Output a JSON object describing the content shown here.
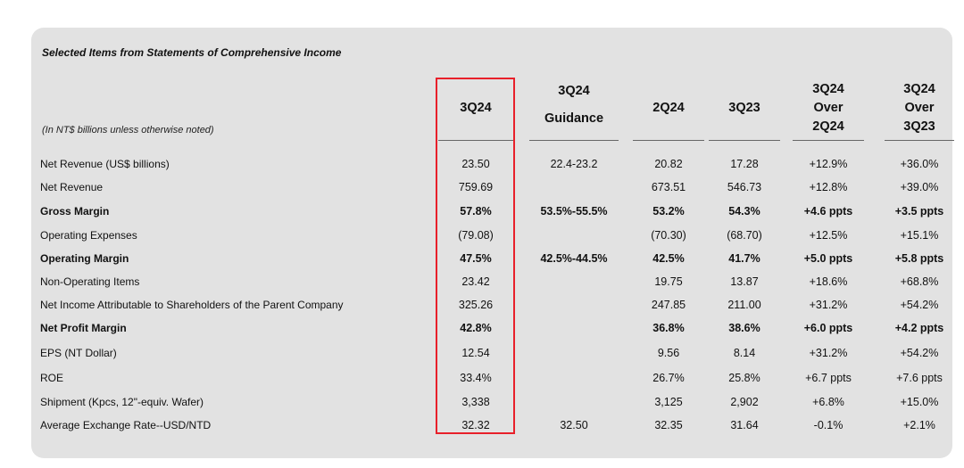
{
  "table": {
    "title": "Selected Items from Statements of Comprehensive Income",
    "units_note": "(In NT$ billions unless otherwise noted)",
    "columns": [
      {
        "lines": [
          "3Q24"
        ]
      },
      {
        "lines": [
          "3Q24",
          "Guidance"
        ]
      },
      {
        "lines": [
          "2Q24"
        ]
      },
      {
        "lines": [
          "3Q23"
        ]
      },
      {
        "lines": [
          "3Q24",
          "Over",
          "2Q24"
        ]
      },
      {
        "lines": [
          "3Q24",
          "Over",
          "3Q23"
        ]
      }
    ],
    "highlight_color": "#e8202a",
    "rows": [
      {
        "label": "Net Revenue (US$ billions)",
        "bold": false,
        "values": [
          "23.50",
          "22.4-23.2",
          "20.82",
          "17.28",
          "+12.9%",
          "+36.0%"
        ]
      },
      {
        "label": "Net Revenue",
        "bold": false,
        "values": [
          "759.69",
          "",
          "673.51",
          "546.73",
          "+12.8%",
          "+39.0%"
        ]
      },
      {
        "label": "Gross Margin",
        "bold": true,
        "values": [
          "57.8%",
          "53.5%-55.5%",
          "53.2%",
          "54.3%",
          "+4.6 ppts",
          "+3.5 ppts"
        ]
      },
      {
        "label": "Operating Expenses",
        "bold": false,
        "values": [
          "(79.08)",
          "",
          "(70.30)",
          "(68.70)",
          "+12.5%",
          "+15.1%"
        ]
      },
      {
        "label": "Operating Margin",
        "bold": true,
        "values": [
          "47.5%",
          "42.5%-44.5%",
          "42.5%",
          "41.7%",
          "+5.0 ppts",
          "+5.8 ppts"
        ]
      },
      {
        "label": "Non-Operating Items",
        "bold": false,
        "values": [
          "23.42",
          "",
          "19.75",
          "13.87",
          "+18.6%",
          "+68.8%"
        ]
      },
      {
        "label": "Net Income Attributable to Shareholders of the Parent Company",
        "bold": false,
        "values": [
          "325.26",
          "",
          "247.85",
          "211.00",
          "+31.2%",
          "+54.2%"
        ]
      },
      {
        "label": "Net Profit Margin",
        "bold": true,
        "values": [
          "42.8%",
          "",
          "36.8%",
          "38.6%",
          "+6.0 ppts",
          "+4.2 ppts"
        ]
      },
      {
        "label": "EPS (NT Dollar)",
        "bold": false,
        "values": [
          "12.54",
          "",
          "9.56",
          "8.14",
          "+31.2%",
          "+54.2%"
        ]
      },
      {
        "label": "ROE",
        "bold": false,
        "values": [
          "33.4%",
          "",
          "26.7%",
          "25.8%",
          "+6.7 ppts",
          "+7.6 ppts"
        ]
      },
      {
        "label": "Shipment (Kpcs, 12\"-equiv. Wafer)",
        "bold": false,
        "values": [
          "3,338",
          "",
          "3,125",
          "2,902",
          "+6.8%",
          "+15.0%"
        ]
      },
      {
        "label": "Average Exchange Rate--USD/NTD",
        "bold": false,
        "values": [
          "32.32",
          "32.50",
          "32.35",
          "31.64",
          "-0.1%",
          "+2.1%"
        ]
      }
    ]
  }
}
